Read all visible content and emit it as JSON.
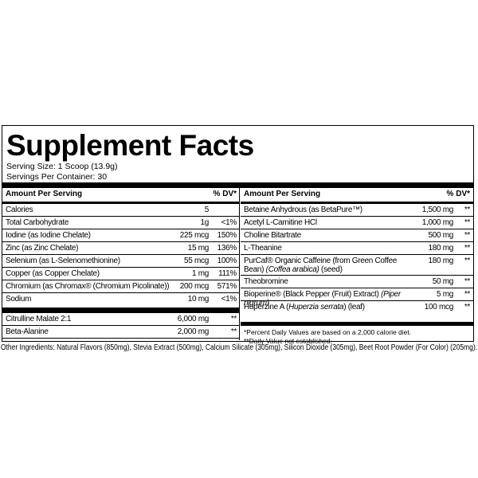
{
  "title": "Supplement Facts",
  "serving_size": "Serving Size: 1 Scoop (13.9g)",
  "servings_per_container": "Servings Per Container: 30",
  "left": {
    "header": {
      "amount": "Amount Per Serving",
      "dv": "% DV*"
    },
    "rows": [
      {
        "name": "Calories",
        "amount": "5",
        "dv": ""
      },
      {
        "name": "Total Carbohydrate",
        "amount": "1g",
        "dv": "<1%"
      },
      {
        "name": "Iodine (as Iodine Chelate)",
        "amount": "225 mcg",
        "dv": "150%"
      },
      {
        "name": "Zinc (as Zinc Chelate)",
        "amount": "15 mg",
        "dv": "136%"
      },
      {
        "name": "Selenium (as L-Selenomethionine)",
        "amount": "55 mcg",
        "dv": "100%"
      },
      {
        "name": "Copper (as Copper Chelate)",
        "amount": "1 mg",
        "dv": "111%"
      },
      {
        "name": "Chromium (as Chromax® (Chromium Picolinate))",
        "amount": "200 mcg",
        "dv": "571%"
      },
      {
        "name": "Sodium",
        "amount": "10 mg",
        "dv": "<1%"
      }
    ],
    "rows2": [
      {
        "name": "Citrulline Malate 2:1",
        "amount": "6,000 mg",
        "dv": "**"
      },
      {
        "name": "Beta-Alanine",
        "amount": "2,000 mg",
        "dv": "**"
      }
    ]
  },
  "right": {
    "header": {
      "amount": "Amount Per Serving",
      "dv": "% DV*"
    },
    "rows": [
      {
        "name": "Betaine Anhydrous (as BetaPure™)",
        "amount": "1,500 mg",
        "dv": "**"
      },
      {
        "name": "Acetyl L-Carnitine HCl",
        "amount": "1,000 mg",
        "dv": "**"
      },
      {
        "name": "Choline Bitartrate",
        "amount": "500 mg",
        "dv": "**"
      },
      {
        "name": "L-Theanine",
        "amount": "180 mg",
        "dv": "**"
      },
      {
        "name": [
          "PurCaf® Organic Caffeine (from Green Coffee Bean) ",
          "(Coffea arabica)",
          " (seed)"
        ],
        "amount": "180 mg",
        "dv": "**"
      },
      {
        "name": "Theobromine",
        "amount": "50 mg",
        "dv": "**"
      },
      {
        "name": [
          "Bioperine® (Black Pepper (Fruit) Extract) ",
          "(Piper nigrum)"
        ],
        "amount": "5 mg",
        "dv": "**"
      },
      {
        "name": [
          "Huperzine A (",
          "Huperzia serrata",
          ") (leaf)"
        ],
        "amount": "100 mcg",
        "dv": "**"
      }
    ],
    "footnotes": [
      "*Percent Daily Values are based on a 2,000 calorie diet.",
      "**Daily Value not established."
    ]
  },
  "other_ingredients": "Other Ingredients: Natural Flavors (850mg), Stevia Extract (500mg), Calcium Silicate (305mg), Silicon Dioxide (305mg), Beet Root Powder (For Color) (205mg)."
}
